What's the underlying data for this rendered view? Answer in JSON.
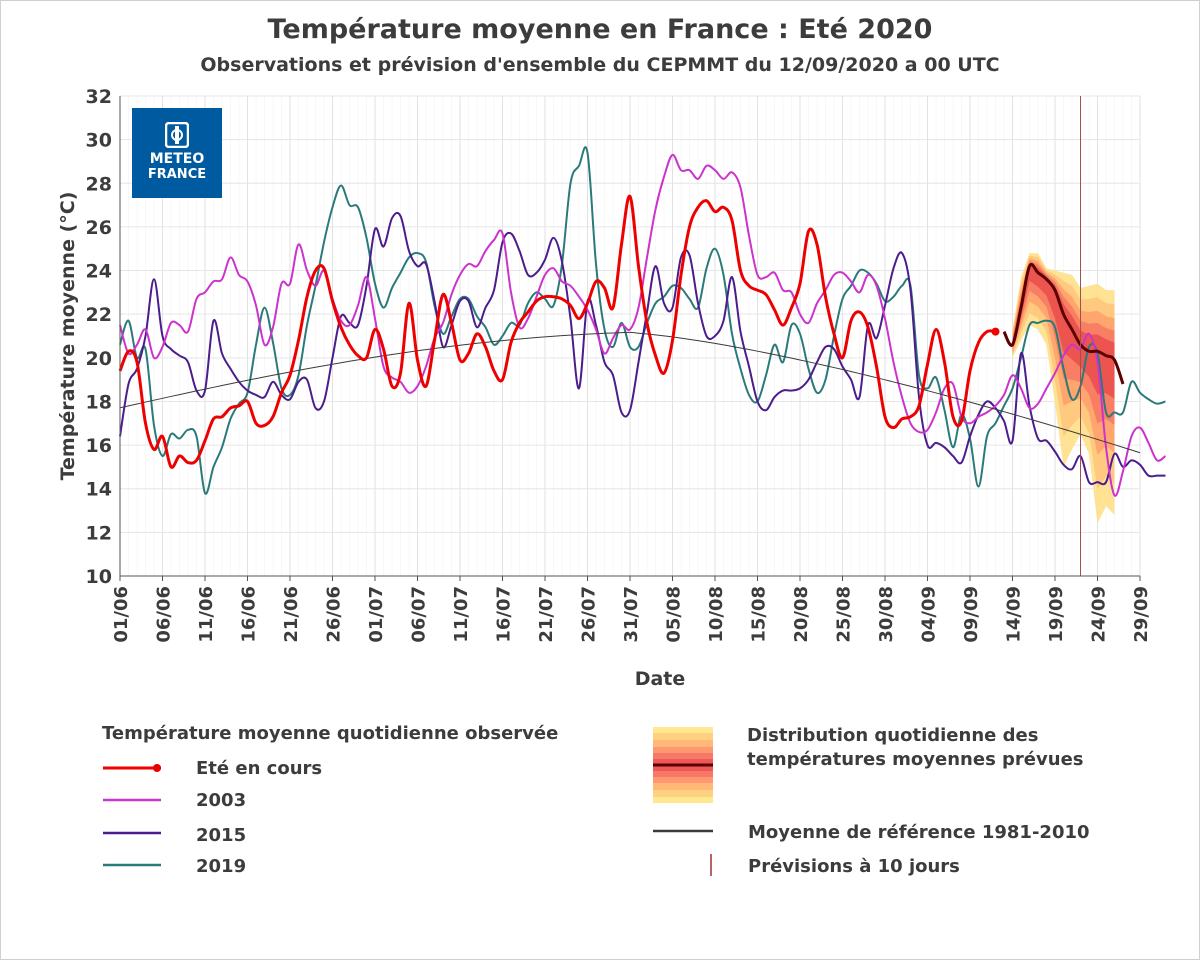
{
  "title": "Température moyenne en France : Eté 2020",
  "subtitle": "Observations et prévision d'ensemble du CEPMMT du 12/09/2020 a 00 UTC",
  "logo": {
    "line1": "METEO",
    "line2": "FRANCE",
    "color": "#005aa0"
  },
  "legend": {
    "observed_header": "Température moyenne quotidienne observée",
    "current": "Eté en cours",
    "y2003": "2003",
    "y2015": "2015",
    "y2019": "2019",
    "distribution": "Distribution quotidienne des\ntempératures moyennes prévues",
    "reference": "Moyenne de référence 1981-2010",
    "forecast10": "Prévisions à 10 jours"
  },
  "chart_data": {
    "type": "line",
    "xlabel": "Date",
    "ylabel": "Température moyenne (°C)",
    "ylim": [
      10,
      32
    ],
    "yticks": [
      10,
      12,
      14,
      16,
      18,
      20,
      22,
      24,
      26,
      28,
      30,
      32
    ],
    "xticks": [
      "01/06",
      "06/06",
      "11/06",
      "16/06",
      "21/06",
      "26/06",
      "01/07",
      "06/07",
      "11/07",
      "16/07",
      "21/07",
      "26/07",
      "31/07",
      "05/08",
      "10/08",
      "15/08",
      "20/08",
      "25/08",
      "30/08",
      "04/09",
      "09/09",
      "14/09",
      "19/09",
      "24/09",
      "29/09"
    ],
    "x_start": "01/06/2020",
    "x_end": "30/09/2020",
    "grid": true,
    "forecast_line_date": "22/09",
    "series": [
      {
        "name": "Eté en cours",
        "color": "#ee0000",
        "width": 3,
        "values": [
          19.4,
          20.3,
          19.8,
          17.0,
          15.8,
          16.4,
          15.0,
          15.5,
          15.2,
          15.3,
          16.2,
          17.2,
          17.3,
          17.7,
          17.8,
          18.0,
          17.0,
          16.9,
          17.3,
          18.4,
          19.2,
          20.8,
          22.8,
          24.0,
          24.1,
          22.6,
          21.4,
          20.6,
          20.1,
          20.0,
          21.3,
          20.4,
          18.7,
          19.3,
          22.5,
          19.9,
          18.7,
          20.8,
          22.9,
          21.6,
          19.9,
          20.2,
          21.1,
          20.5,
          19.4,
          19.0,
          20.7,
          21.6,
          22.1,
          22.6,
          22.8,
          22.8,
          22.7,
          22.4,
          21.8,
          22.5,
          23.5,
          23.2,
          22.3,
          25.2,
          27.4,
          24.2,
          21.6,
          20.1,
          19.3,
          20.8,
          23.8,
          26.0,
          26.9,
          27.2,
          26.7,
          26.9,
          26.3,
          24.0,
          23.3,
          23.1,
          22.9,
          22.2,
          21.5,
          22.3,
          23.4,
          25.8,
          25.2,
          22.8,
          21.1,
          20.0,
          21.7,
          22.1,
          21.4,
          19.6,
          17.3,
          16.8,
          17.2,
          17.3,
          17.8,
          19.7,
          21.3,
          19.8,
          17.3,
          17.1,
          19.4,
          20.7,
          21.2,
          21.2,
          null,
          null,
          null,
          null,
          null,
          null,
          null,
          null,
          null,
          null,
          null,
          null,
          null,
          null,
          null,
          null,
          null,
          null
        ]
      },
      {
        "name": "2003",
        "color": "#cc33cc",
        "width": 2,
        "values": [
          21.5,
          20.2,
          20.6,
          21.3,
          20.0,
          20.5,
          21.6,
          21.5,
          21.2,
          22.7,
          23.0,
          23.5,
          23.6,
          24.6,
          23.8,
          23.5,
          22.4,
          20.6,
          21.4,
          23.4,
          23.4,
          25.2,
          24.0,
          23.3,
          24.0,
          22.7,
          21.7,
          21.5,
          22.4,
          23.7,
          21.8,
          19.6,
          19.1,
          18.9,
          18.4,
          18.7,
          19.6,
          20.9,
          21.6,
          22.9,
          23.8,
          24.3,
          24.2,
          24.9,
          25.4,
          25.7,
          23.0,
          21.4,
          21.8,
          22.8,
          23.8,
          24.1,
          23.5,
          23.3,
          22.8,
          22.2,
          21.3,
          20.2,
          20.9,
          21.5,
          21.3,
          22.3,
          24.6,
          26.8,
          28.3,
          29.3,
          28.6,
          28.6,
          28.2,
          28.8,
          28.6,
          28.2,
          28.5,
          27.8,
          25.6,
          23.8,
          23.7,
          23.9,
          23.1,
          23.0,
          22.0,
          21.6,
          22.5,
          23.1,
          23.8,
          23.9,
          23.5,
          23.0,
          23.8,
          23.3,
          21.8,
          19.8,
          18.2,
          17.0,
          16.6,
          16.7,
          17.5,
          18.6,
          18.8,
          17.3,
          17.0,
          17.3,
          17.5,
          17.8,
          18.3,
          19.2,
          18.6,
          17.7,
          17.9,
          18.6,
          19.3,
          20.1,
          20.6,
          20.4,
          21.1,
          19.8,
          15.9,
          13.7,
          14.8,
          16.4,
          16.8,
          16.1,
          15.3,
          15.5
        ]
      },
      {
        "name": "2015",
        "color": "#4b1c8c",
        "width": 2,
        "values": [
          16.4,
          18.8,
          19.5,
          21.0,
          23.6,
          21.0,
          20.4,
          20.1,
          19.8,
          18.5,
          18.5,
          21.7,
          20.2,
          19.5,
          18.9,
          18.5,
          18.3,
          18.2,
          18.9,
          18.3,
          18.1,
          18.9,
          19.0,
          17.7,
          18.0,
          20.0,
          21.9,
          21.6,
          21.5,
          23.3,
          25.9,
          25.1,
          26.4,
          26.5,
          24.9,
          24.2,
          24.3,
          22.6,
          20.5,
          21.5,
          22.6,
          22.6,
          21.4,
          22.3,
          23.1,
          25.3,
          25.7,
          24.9,
          23.8,
          23.9,
          24.5,
          25.5,
          24.4,
          21.8,
          18.6,
          22.6,
          21.5,
          19.8,
          19.2,
          17.5,
          17.6,
          19.8,
          22.1,
          24.2,
          22.5,
          22.3,
          24.6,
          24.7,
          22.5,
          21.0,
          21.0,
          21.7,
          23.7,
          21.2,
          19.6,
          18.0,
          17.6,
          18.2,
          18.5,
          18.5,
          18.6,
          19.0,
          19.8,
          20.5,
          20.4,
          19.6,
          19.0,
          18.2,
          21.5,
          20.9,
          22.4,
          24.1,
          24.8,
          23.1,
          18.2,
          16.0,
          16.1,
          15.9,
          15.5,
          15.2,
          16.4,
          17.4,
          18.0,
          17.7,
          17.1,
          16.2,
          20.2,
          17.8,
          16.3,
          16.2,
          15.7,
          15.1,
          14.9,
          15.5,
          14.3,
          14.3,
          14.3,
          15.6,
          15.0,
          15.3,
          15.1,
          14.6,
          14.6,
          14.6
        ]
      },
      {
        "name": "2019",
        "color": "#2a7a7a",
        "width": 2,
        "values": [
          20.6,
          21.7,
          20.0,
          20.4,
          16.9,
          15.5,
          16.5,
          16.3,
          16.7,
          16.4,
          13.8,
          15.0,
          15.9,
          17.2,
          17.9,
          18.4,
          20.6,
          22.3,
          20.7,
          18.6,
          18.3,
          19.2,
          21.5,
          23.3,
          25.3,
          26.9,
          27.9,
          27.0,
          26.9,
          25.5,
          23.4,
          22.3,
          23.2,
          23.9,
          24.6,
          24.8,
          24.4,
          22.4,
          21.1,
          21.9,
          22.7,
          22.7,
          21.9,
          21.4,
          20.6,
          21.0,
          21.6,
          21.5,
          22.5,
          23.0,
          22.7,
          22.4,
          24.3,
          28.0,
          28.8,
          29.4,
          24.3,
          21.3,
          20.5,
          21.6,
          20.5,
          20.5,
          21.6,
          22.5,
          22.8,
          23.3,
          23.2,
          22.7,
          22.3,
          24.1,
          25.0,
          23.8,
          21.1,
          19.5,
          18.3,
          18.0,
          19.2,
          20.6,
          19.8,
          21.5,
          21.1,
          19.5,
          18.4,
          19.0,
          21.0,
          22.7,
          23.3,
          24.0,
          23.9,
          23.4,
          22.6,
          22.8,
          23.3,
          23.3,
          19.2,
          18.6,
          19.1,
          17.6,
          15.9,
          17.4,
          16.3,
          14.1,
          16.4,
          17.0,
          17.8,
          18.6,
          20.0,
          21.5,
          21.6,
          21.7,
          21.4,
          19.5,
          18.1,
          18.7,
          20.5,
          20.2,
          17.5,
          17.5,
          17.5,
          18.9,
          18.4,
          18.1,
          17.9,
          18.0
        ]
      },
      {
        "name": "Moyenne de référence 1981-2010",
        "color": "#3c3c3c",
        "width": 1,
        "values_formula": "climatology"
      }
    ],
    "forecast": {
      "median": [
        [
          104,
          21.2
        ],
        [
          105,
          20.6
        ],
        [
          106,
          22.3
        ],
        [
          107,
          24.2
        ],
        [
          108,
          23.9
        ],
        [
          109,
          23.6
        ],
        [
          110,
          23.1
        ],
        [
          111,
          22.0
        ],
        [
          112,
          21.3
        ],
        [
          113,
          20.6
        ],
        [
          114,
          20.3
        ],
        [
          115,
          20.3
        ],
        [
          116,
          20.1
        ],
        [
          117,
          19.9
        ],
        [
          118,
          18.8
        ]
      ],
      "band_outer_lo": [
        [
          105,
          20.0
        ],
        [
          106,
          20.8
        ],
        [
          107,
          21.5
        ],
        [
          108,
          21.3
        ],
        [
          109,
          20.6
        ],
        [
          110,
          17.9
        ],
        [
          111,
          15.0
        ],
        [
          112,
          15.8
        ],
        [
          113,
          16.5
        ],
        [
          114,
          15.6
        ],
        [
          115,
          12.4
        ],
        [
          116,
          13.2
        ],
        [
          117,
          12.8
        ]
      ],
      "band_outer_hi": [
        [
          105,
          21.3
        ],
        [
          106,
          23.7
        ],
        [
          107,
          24.8
        ],
        [
          108,
          24.8
        ],
        [
          109,
          24.1
        ],
        [
          110,
          24.0
        ],
        [
          111,
          23.9
        ],
        [
          112,
          23.8
        ],
        [
          113,
          23.2
        ],
        [
          114,
          23.3
        ],
        [
          115,
          23.4
        ],
        [
          116,
          23.1
        ],
        [
          117,
          23.1
        ]
      ],
      "color_outer": "#ffe08a",
      "color_inner": "#ee4040",
      "median_color": "#5a0000"
    }
  }
}
